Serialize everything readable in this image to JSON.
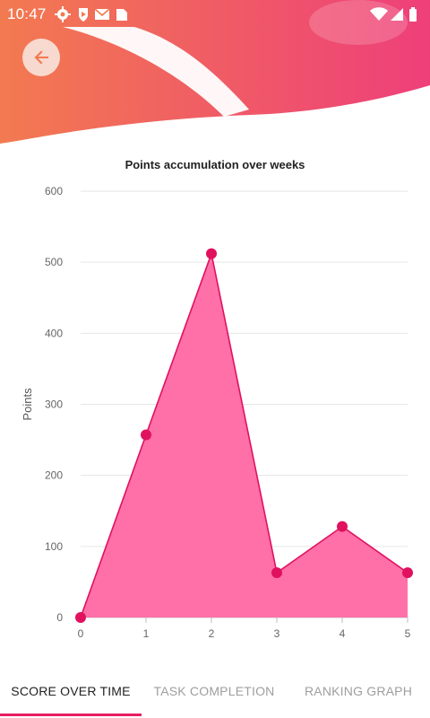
{
  "status_bar": {
    "time": "10:47",
    "left_icons": [
      "settings-icon",
      "play-protect-icon",
      "gmail-icon",
      "sd-card-icon"
    ],
    "right_icons": [
      "wifi-icon",
      "signal-icon",
      "battery-icon"
    ]
  },
  "header": {
    "back_icon": "arrow-left-icon",
    "gradient_start": "#f27a50",
    "gradient_end": "#ee3f7a"
  },
  "chart_data": {
    "type": "area",
    "title": "Points accumulation over weeks",
    "xlabel": "",
    "ylabel": "Points",
    "x": [
      0,
      1,
      2,
      3,
      4,
      5
    ],
    "series": [
      {
        "values": [
          0,
          257,
          512,
          63,
          128,
          63
        ]
      }
    ],
    "ylim": [
      0,
      600
    ],
    "yticks": [
      0,
      100,
      200,
      300,
      400,
      500,
      600
    ],
    "xticks": [
      0,
      1,
      2,
      3,
      4,
      5
    ],
    "grid": true,
    "fill_color": "#ff6fa8",
    "line_color": "#e0115f"
  },
  "tabs": [
    {
      "label": "SCORE OVER TIME",
      "active": true
    },
    {
      "label": "TASK COMPLETION",
      "active": false
    },
    {
      "label": "RANKING GRAPH",
      "active": false
    }
  ]
}
